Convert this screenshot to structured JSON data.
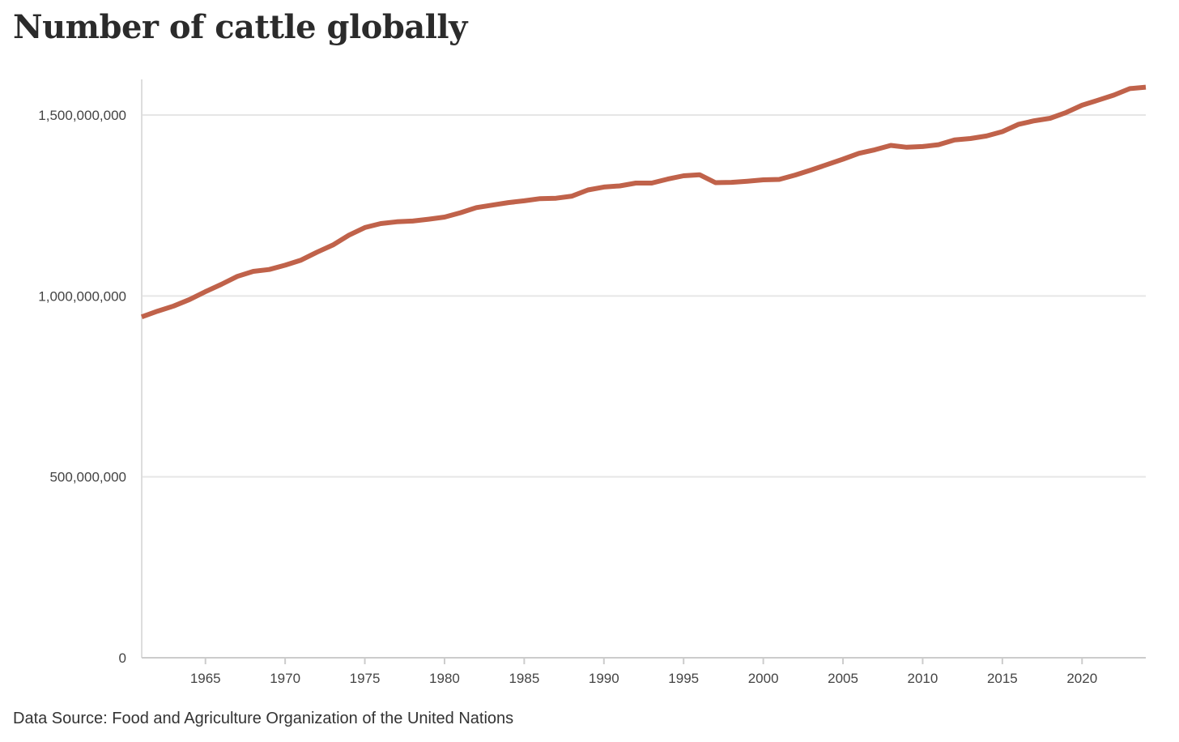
{
  "chart_data": {
    "type": "line",
    "title": "Number of cattle globally",
    "source": "Data Source: Food and Agriculture Organization of the United Nations",
    "xlabel": "",
    "ylabel": "",
    "xlim": [
      1961,
      2024
    ],
    "ylim": [
      0,
      1600000000
    ],
    "grid": true,
    "line_color": "#c0624a",
    "grid_color": "#e6e6e6",
    "y_ticks": [
      {
        "value": 0,
        "label": "0"
      },
      {
        "value": 500000000,
        "label": "500,000,000"
      },
      {
        "value": 1000000000,
        "label": "1,000,000,000"
      },
      {
        "value": 1500000000,
        "label": "1,500,000,000"
      }
    ],
    "x_ticks": [
      {
        "value": 1965,
        "label": "1965"
      },
      {
        "value": 1970,
        "label": "1970"
      },
      {
        "value": 1975,
        "label": "1975"
      },
      {
        "value": 1980,
        "label": "1980"
      },
      {
        "value": 1985,
        "label": "1985"
      },
      {
        "value": 1990,
        "label": "1990"
      },
      {
        "value": 1995,
        "label": "1995"
      },
      {
        "value": 2000,
        "label": "2000"
      },
      {
        "value": 2005,
        "label": "2005"
      },
      {
        "value": 2010,
        "label": "2010"
      },
      {
        "value": 2015,
        "label": "2015"
      },
      {
        "value": 2020,
        "label": "2020"
      }
    ],
    "series": [
      {
        "name": "Cattle",
        "x": [
          1961,
          1962,
          1963,
          1964,
          1965,
          1966,
          1967,
          1968,
          1969,
          1970,
          1971,
          1972,
          1973,
          1974,
          1975,
          1976,
          1977,
          1978,
          1979,
          1980,
          1981,
          1982,
          1983,
          1984,
          1985,
          1986,
          1987,
          1988,
          1989,
          1990,
          1991,
          1992,
          1993,
          1994,
          1995,
          1996,
          1997,
          1998,
          1999,
          2000,
          2001,
          2002,
          2003,
          2004,
          2005,
          2006,
          2007,
          2008,
          2009,
          2010,
          2011,
          2012,
          2013,
          2014,
          2015,
          2016,
          2017,
          2018,
          2019,
          2020,
          2021,
          2022,
          2023,
          2024
        ],
        "values": [
          942000000,
          958000000,
          972000000,
          990000000,
          1012000000,
          1032000000,
          1054000000,
          1068000000,
          1073000000,
          1085000000,
          1099000000,
          1121000000,
          1141000000,
          1168000000,
          1189000000,
          1200000000,
          1205000000,
          1207000000,
          1212000000,
          1218000000,
          1230000000,
          1244000000,
          1251000000,
          1258000000,
          1263000000,
          1269000000,
          1270000000,
          1276000000,
          1293000000,
          1301000000,
          1304000000,
          1312000000,
          1312000000,
          1323000000,
          1332000000,
          1335000000,
          1313000000,
          1314000000,
          1317000000,
          1321000000,
          1322000000,
          1334000000,
          1348000000,
          1363000000,
          1378000000,
          1394000000,
          1404000000,
          1416000000,
          1411000000,
          1413000000,
          1418000000,
          1431000000,
          1435000000,
          1442000000,
          1454000000,
          1474000000,
          1484000000,
          1491000000,
          1507000000,
          1527000000,
          1541000000,
          1555000000,
          1573000000,
          1577000000
        ]
      }
    ]
  }
}
